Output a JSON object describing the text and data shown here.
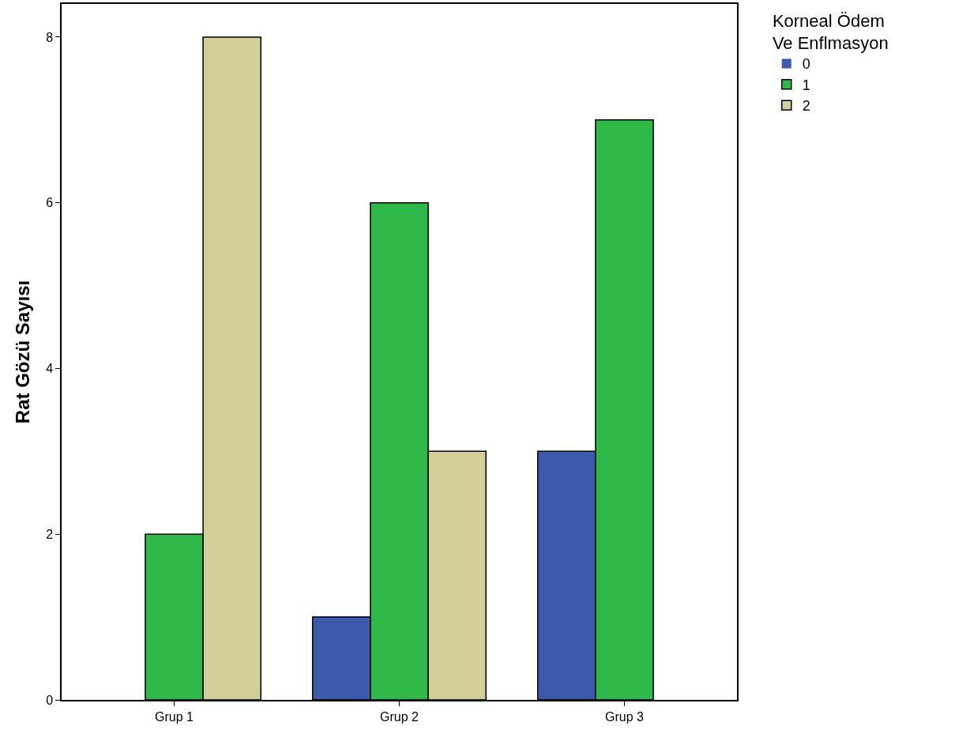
{
  "chart_data": {
    "type": "bar",
    "ylabel": "Rat Gözü Sayısı",
    "legend_title": "Korneal Ödem Ve Enflmasyon",
    "categories": [
      "Grup 1",
      "Grup 2",
      "Grup 3"
    ],
    "series": [
      {
        "name": "0",
        "color": "#3d59ab",
        "values": [
          0,
          1,
          3
        ]
      },
      {
        "name": "1",
        "color": "#2eb848",
        "values": [
          2,
          6,
          7
        ]
      },
      {
        "name": "2",
        "color": "#d4cf98",
        "values": [
          8,
          3,
          0
        ]
      }
    ],
    "ylim": [
      0,
      8.4
    ],
    "yticks": [
      0,
      2,
      4,
      6,
      8
    ],
    "grid": false,
    "legend": "top right"
  }
}
